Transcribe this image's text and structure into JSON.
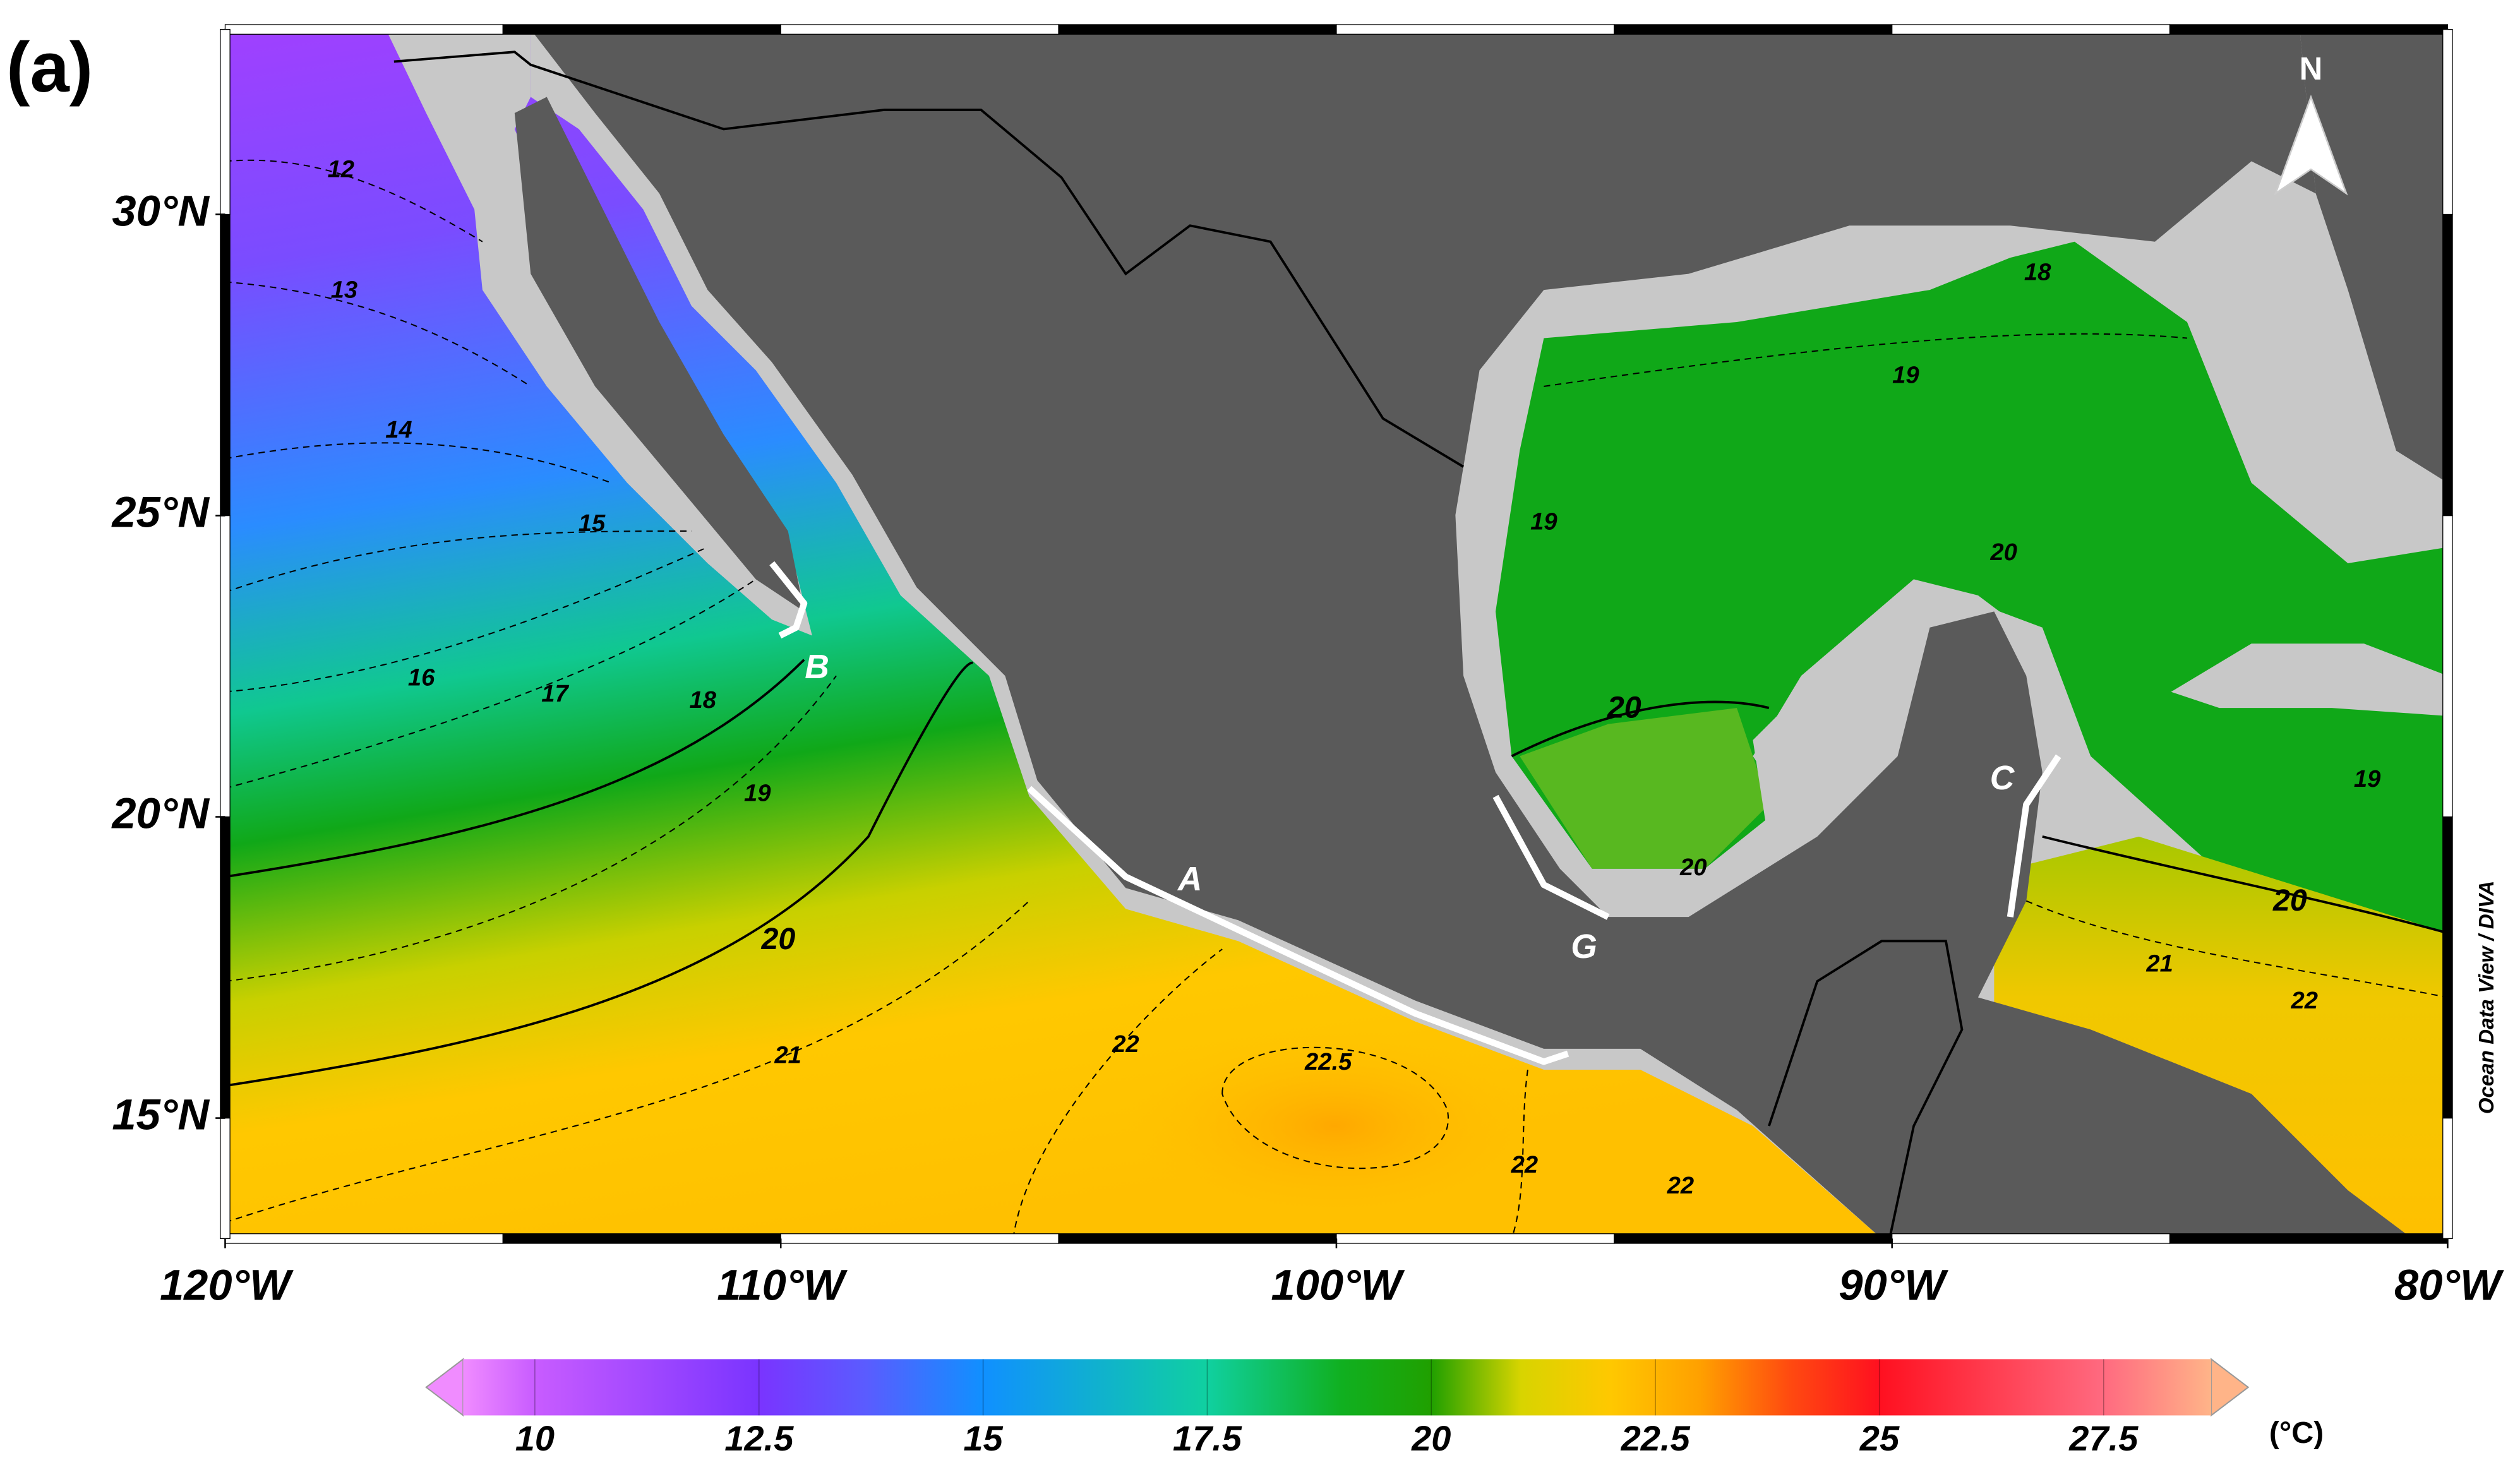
{
  "panel_label": "(a)",
  "north_label": "N",
  "lon_range": [
    -120,
    -80
  ],
  "lat_range": [
    13.0,
    33.07
  ],
  "lat_ticks": [
    {
      "value": 30,
      "label": "30°N"
    },
    {
      "value": 25,
      "label": "25°N"
    },
    {
      "value": 20,
      "label": "20°N"
    },
    {
      "value": 15,
      "label": "15°N"
    }
  ],
  "lon_ticks": [
    {
      "value": -120,
      "label": "120°W"
    },
    {
      "value": -110,
      "label": "110°W"
    },
    {
      "value": -100,
      "label": "100°W"
    },
    {
      "value": -90,
      "label": "90°W"
    },
    {
      "value": -80,
      "label": "80°W"
    }
  ],
  "contour_labels": [
    12,
    13,
    14,
    15,
    16,
    17,
    18,
    19,
    20,
    21,
    22,
    22.5,
    22,
    22,
    18,
    19,
    19,
    20,
    20,
    20,
    21,
    22,
    20,
    19
  ],
  "site_labels": [
    "B",
    "A",
    "G",
    "C"
  ],
  "colorbar": {
    "range": [
      9.2,
      28.7
    ],
    "ticks": [
      10,
      12.5,
      15,
      17.5,
      20,
      22.5,
      25,
      27.5
    ],
    "unit": "(°C)",
    "stops": [
      [
        9.2,
        "#f08cff"
      ],
      [
        10,
        "#c85cff"
      ],
      [
        12.5,
        "#7a34ff"
      ],
      [
        13.7,
        "#5a5cff"
      ],
      [
        15,
        "#1090ff"
      ],
      [
        17.5,
        "#10d0a0"
      ],
      [
        19,
        "#10b020"
      ],
      [
        20,
        "#20a000"
      ],
      [
        21,
        "#d8d400"
      ],
      [
        22,
        "#ffc800"
      ],
      [
        23,
        "#ffa000"
      ],
      [
        24,
        "#ff4a10"
      ],
      [
        25,
        "#ff1020"
      ],
      [
        27.5,
        "#ff6a80"
      ],
      [
        28.7,
        "#ffb488"
      ]
    ]
  },
  "credit": "Ocean Data View / DIVA"
}
